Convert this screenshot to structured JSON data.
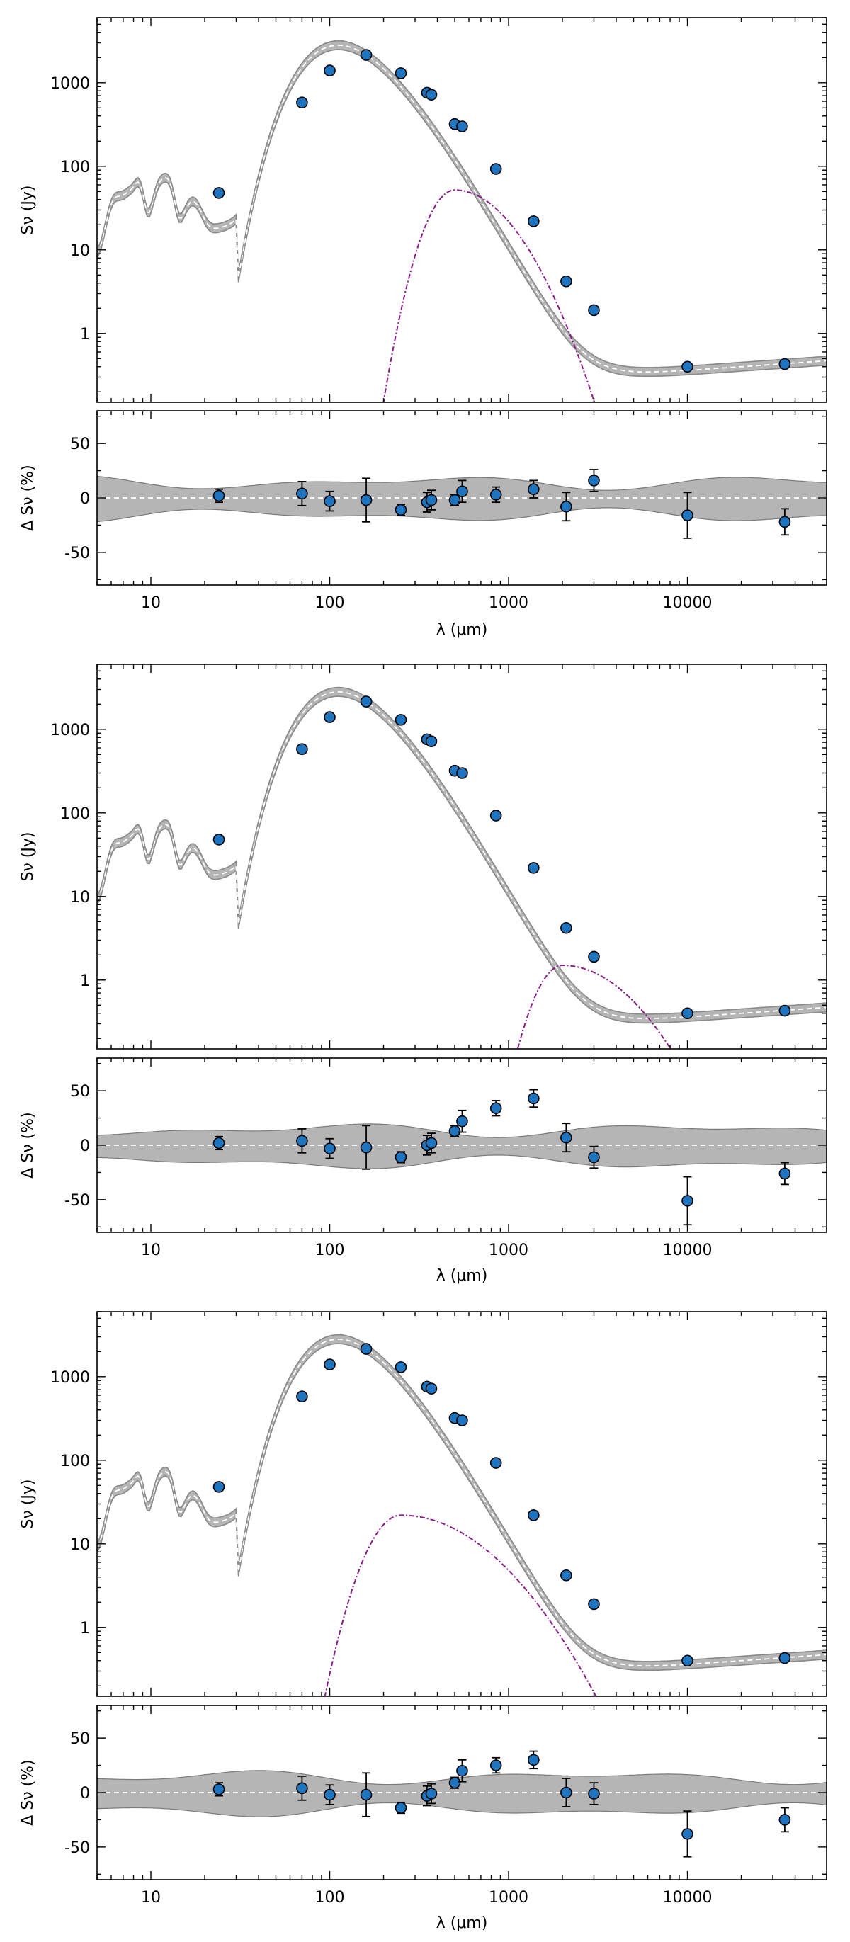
{
  "figure": {
    "xlabel": "λ (μm)",
    "flux_ylabel": "Sν (Jy)",
    "resid_ylabel": "Δ Sν (%)",
    "x_ticks": [
      {
        "v": 10,
        "t": "10"
      },
      {
        "v": 100,
        "t": "100"
      },
      {
        "v": 1000,
        "t": "1000"
      },
      {
        "v": 10000,
        "t": "10000"
      }
    ],
    "flux_ticks": [
      {
        "v": 1,
        "t": "1"
      },
      {
        "v": 10,
        "t": "10"
      },
      {
        "v": 100,
        "t": "100"
      },
      {
        "v": 1000,
        "t": "1000"
      }
    ],
    "resid_ticks": [
      {
        "v": -50,
        "t": "-50"
      },
      {
        "v": 0,
        "t": "0"
      },
      {
        "v": 50,
        "t": "50"
      }
    ],
    "colors": {
      "points": "#1f74bf",
      "band": "#b5b5b5",
      "component": "#8b1a8b"
    }
  },
  "chart_data": [
    {
      "type": "scatter",
      "panel": "top",
      "xscale": "log",
      "xlim": [
        5,
        60000
      ],
      "flux": {
        "yscale": "log",
        "ylim": [
          0.15,
          6000
        ],
        "x": [
          24,
          70,
          100,
          160,
          250,
          350,
          370,
          500,
          550,
          850,
          1380,
          2100,
          3000,
          10000,
          35000
        ],
        "y": [
          48,
          580,
          1400,
          2150,
          1300,
          760,
          720,
          320,
          300,
          93,
          22,
          4.2,
          1.9,
          0.4,
          0.43
        ],
        "component": {
          "peak_x": 500,
          "peak_y": 52,
          "left_slope": 4.0,
          "right_slope": 3.2,
          "x_range": [
            140,
            4500
          ]
        }
      },
      "residuals": {
        "ylim": [
          -80,
          80
        ],
        "y": [
          2,
          4,
          -3,
          -2,
          -11,
          -4,
          -2,
          -2,
          6,
          3,
          8,
          -8,
          16,
          -16,
          -22
        ],
        "err": [
          6,
          11,
          9,
          20,
          5,
          9,
          9,
          5,
          10,
          7,
          8,
          13,
          10,
          21,
          12
        ]
      }
    },
    {
      "type": "scatter",
      "panel": "middle",
      "xscale": "log",
      "xlim": [
        5,
        60000
      ],
      "flux": {
        "yscale": "log",
        "ylim": [
          0.15,
          6000
        ],
        "x": [
          24,
          70,
          100,
          160,
          250,
          350,
          370,
          500,
          550,
          850,
          1380,
          2100,
          3000,
          10000,
          35000
        ],
        "y": [
          48,
          580,
          1400,
          2150,
          1300,
          760,
          720,
          320,
          300,
          93,
          22,
          4.2,
          1.9,
          0.4,
          0.43
        ],
        "component": {
          "peak_x": 2000,
          "peak_y": 1.5,
          "left_slope": 4.0,
          "right_slope": 2.1,
          "x_range": [
            900,
            12000
          ]
        }
      },
      "residuals": {
        "ylim": [
          -80,
          80
        ],
        "y": [
          2,
          4,
          -3,
          -2,
          -11,
          0,
          2,
          13,
          22,
          34,
          43,
          7,
          -11,
          -51,
          -26
        ],
        "err": [
          6,
          11,
          9,
          20,
          5,
          9,
          9,
          5,
          10,
          7,
          8,
          13,
          10,
          22,
          10
        ]
      }
    },
    {
      "type": "scatter",
      "panel": "bottom",
      "xscale": "log",
      "xlim": [
        5,
        60000
      ],
      "flux": {
        "yscale": "log",
        "ylim": [
          0.15,
          6000
        ],
        "x": [
          24,
          70,
          100,
          160,
          250,
          350,
          370,
          500,
          550,
          850,
          1380,
          2100,
          3000,
          10000,
          35000
        ],
        "y": [
          48,
          580,
          1400,
          2150,
          1300,
          760,
          720,
          320,
          300,
          93,
          22,
          4.2,
          1.9,
          0.4,
          0.43
        ],
        "component": {
          "peak_x": 250,
          "peak_y": 22,
          "left_slope": 3.0,
          "right_slope": 1.4,
          "x_range": [
            58,
            8500
          ]
        }
      },
      "residuals": {
        "ylim": [
          -80,
          80
        ],
        "y": [
          3,
          4,
          -2,
          -2,
          -14,
          -3,
          -1,
          9,
          20,
          25,
          30,
          0,
          -1,
          -38,
          -25
        ],
        "err": [
          6,
          11,
          9,
          20,
          5,
          9,
          9,
          5,
          10,
          7,
          8,
          13,
          10,
          21,
          11
        ]
      }
    }
  ]
}
